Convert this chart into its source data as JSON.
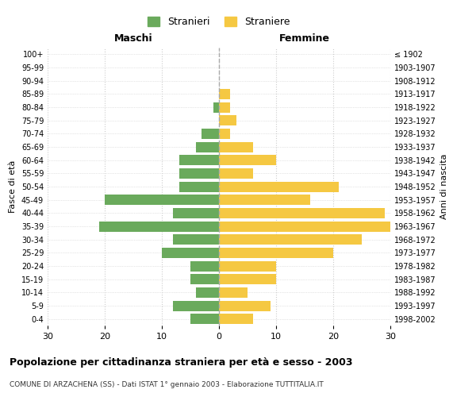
{
  "age_groups": [
    "0-4",
    "5-9",
    "10-14",
    "15-19",
    "20-24",
    "25-29",
    "30-34",
    "35-39",
    "40-44",
    "45-49",
    "50-54",
    "55-59",
    "60-64",
    "65-69",
    "70-74",
    "75-79",
    "80-84",
    "85-89",
    "90-94",
    "95-99",
    "100+"
  ],
  "birth_years": [
    "1998-2002",
    "1993-1997",
    "1988-1992",
    "1983-1987",
    "1978-1982",
    "1973-1977",
    "1968-1972",
    "1963-1967",
    "1958-1962",
    "1953-1957",
    "1948-1952",
    "1943-1947",
    "1938-1942",
    "1933-1937",
    "1928-1932",
    "1923-1927",
    "1918-1922",
    "1913-1917",
    "1908-1912",
    "1903-1907",
    "≤ 1902"
  ],
  "maschi": [
    5,
    8,
    4,
    5,
    5,
    10,
    8,
    21,
    8,
    20,
    7,
    7,
    7,
    4,
    3,
    0,
    1,
    0,
    0,
    0,
    0
  ],
  "femmine": [
    6,
    9,
    5,
    10,
    10,
    20,
    25,
    30,
    29,
    16,
    21,
    6,
    10,
    6,
    2,
    3,
    2,
    2,
    0,
    0,
    0
  ],
  "maschi_color": "#6aaa5c",
  "femmine_color": "#f5c842",
  "background_color": "#ffffff",
  "grid_color": "#cccccc",
  "title": "Popolazione per cittadinanza straniera per età e sesso - 2003",
  "subtitle": "COMUNE DI ARZACHENA (SS) - Dati ISTAT 1° gennaio 2003 - Elaborazione TUTTITALIA.IT",
  "xlabel_left": "Maschi",
  "xlabel_right": "Femmine",
  "ylabel_left": "Fasce di età",
  "ylabel_right": "Anni di nascita",
  "xlim": 30,
  "legend_stranieri": "Stranieri",
  "legend_straniere": "Straniere"
}
